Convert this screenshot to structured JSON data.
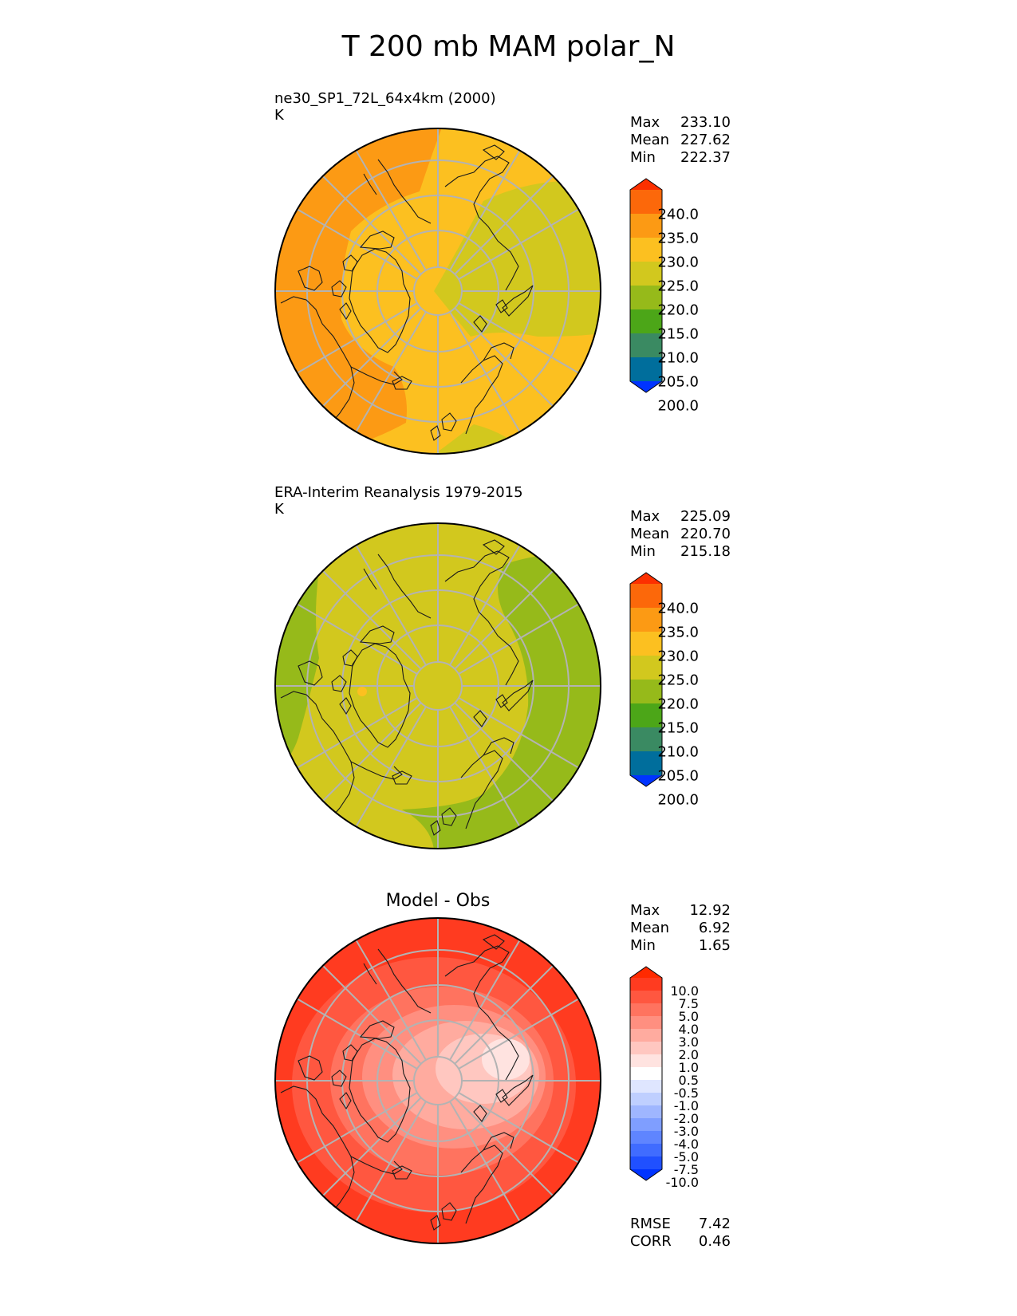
{
  "page": {
    "title": "T 200 mb MAM polar_N"
  },
  "panels": [
    {
      "id": "test",
      "case_name": "ne30_SP1_72L_64x4km (2000)",
      "units": "K",
      "stats": {
        "max_label": "Max",
        "max": "233.10",
        "mean_label": "Mean",
        "mean": "227.62",
        "min_label": "Min",
        "min": "222.37"
      },
      "colorbar": {
        "labels": [
          "240.0",
          "235.0",
          "230.0",
          "225.0",
          "220.0",
          "215.0",
          "210.0",
          "205.0",
          "200.0"
        ],
        "colors": [
          "#0033ff",
          "#006e9c",
          "#3a8a62",
          "#4ca618",
          "#96ba1a",
          "#d2c81e",
          "#fcc020",
          "#fc9a14",
          "#fc680a",
          "#fc3000"
        ]
      }
    },
    {
      "id": "ref",
      "case_name": "ERA-Interim Reanalysis 1979-2015",
      "units": "K",
      "stats": {
        "max_label": "Max",
        "max": "225.09",
        "mean_label": "Mean",
        "mean": "220.70",
        "min_label": "Min",
        "min": "215.18"
      },
      "colorbar": {
        "labels": [
          "240.0",
          "235.0",
          "230.0",
          "225.0",
          "220.0",
          "215.0",
          "210.0",
          "205.0",
          "200.0"
        ],
        "colors": [
          "#0033ff",
          "#006e9c",
          "#3a8a62",
          "#4ca618",
          "#96ba1a",
          "#d2c81e",
          "#fcc020",
          "#fc9a14",
          "#fc680a",
          "#fc3000"
        ]
      }
    },
    {
      "id": "diff",
      "title": "Model - Obs",
      "stats": {
        "max_label": "Max",
        "max": "12.92",
        "mean_label": "Mean",
        "mean": "6.92",
        "min_label": "Min",
        "min": "1.65"
      },
      "metrics": {
        "rmse_label": "RMSE",
        "rmse": "7.42",
        "corr_label": "CORR",
        "corr": "0.46"
      },
      "colorbar": {
        "labels": [
          "10.0",
          "7.5",
          "5.0",
          "4.0",
          "3.0",
          "2.0",
          "1.0",
          "0.5",
          "-0.5",
          "-1.0",
          "-2.0",
          "-3.0",
          "-4.0",
          "-5.0",
          "-7.5",
          "-10.0"
        ],
        "colors": [
          "#0033ff",
          "#2050ff",
          "#406cff",
          "#5f85ff",
          "#7f9eff",
          "#9fb6ff",
          "#bfcfff",
          "#dfe6ff",
          "#ffffff",
          "#ffe3e0",
          "#ffc7c0",
          "#ffab9f",
          "#ff8f80",
          "#ff735f",
          "#ff5740",
          "#ff3b20",
          "#ff2a00"
        ]
      }
    }
  ],
  "chart_data": [
    {
      "type": "heatmap",
      "title": "T 200 mb MAM polar_N",
      "subtitle": "ne30_SP1_72L_64x4km (2000)",
      "units": "K",
      "projection": "north polar stereographic",
      "levels": [
        200,
        205,
        210,
        215,
        220,
        225,
        230,
        235,
        240
      ],
      "stats": {
        "max": 233.1,
        "mean": 227.62,
        "min": 222.37
      }
    },
    {
      "type": "heatmap",
      "title": "T 200 mb MAM polar_N",
      "subtitle": "ERA-Interim Reanalysis 1979-2015",
      "units": "K",
      "projection": "north polar stereographic",
      "levels": [
        200,
        205,
        210,
        215,
        220,
        225,
        230,
        235,
        240
      ],
      "stats": {
        "max": 225.09,
        "mean": 220.7,
        "min": 215.18
      }
    },
    {
      "type": "heatmap",
      "title": "Model - Obs",
      "units": "K",
      "projection": "north polar stereographic",
      "levels": [
        -10.0,
        -7.5,
        -5.0,
        -4.0,
        -3.0,
        -2.0,
        -1.0,
        -0.5,
        0.5,
        1.0,
        2.0,
        3.0,
        4.0,
        5.0,
        7.5,
        10.0
      ],
      "stats": {
        "max": 12.92,
        "mean": 6.92,
        "min": 1.65,
        "rmse": 7.42,
        "corr": 0.46
      }
    }
  ]
}
